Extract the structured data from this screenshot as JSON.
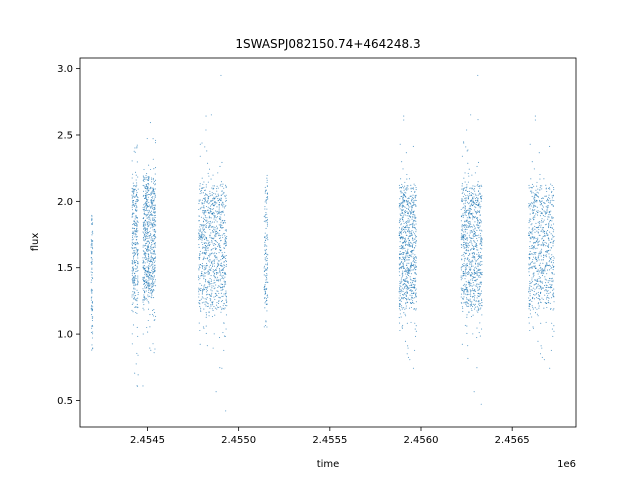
{
  "chart_data": {
    "type": "scatter",
    "title": "1SWASPJ082150.74+464248.3",
    "xlabel": "time",
    "ylabel": "flux",
    "x_offset_label": "1e6",
    "xlim": [
      2454130,
      2456850
    ],
    "ylim": [
      0.3,
      3.08
    ],
    "grid": false,
    "legend": "none",
    "point_color": "#1f77b4",
    "x_ticks": [
      2454500,
      2455000,
      2455500,
      2456000,
      2456500
    ],
    "x_tick_labels": [
      "2.4545",
      "2.4550",
      "2.4555",
      "2.4560",
      "2.4565"
    ],
    "y_ticks": [
      0.5,
      1.0,
      1.5,
      2.0,
      2.5,
      3.0
    ],
    "y_tick_labels": [
      "0.5",
      "1.0",
      "1.5",
      "2.0",
      "2.5",
      "3.0"
    ],
    "observing_segments": [
      {
        "x_start": 2454190,
        "x_end": 2454200,
        "y_center": 1.4,
        "y_min": 0.85,
        "y_max": 1.9,
        "density": 0.1
      },
      {
        "x_start": 2454415,
        "x_end": 2454450,
        "y_center": 1.65,
        "y_min": 0.6,
        "y_max": 2.45,
        "density": 0.35
      },
      {
        "x_start": 2454475,
        "x_end": 2454545,
        "y_center": 1.72,
        "y_min": 0.45,
        "y_max": 2.95,
        "density": 0.75
      },
      {
        "x_start": 2454780,
        "x_end": 2454935,
        "y_center": 1.65,
        "y_min": 0.4,
        "y_max": 2.98,
        "density": 1.0
      },
      {
        "x_start": 2455140,
        "x_end": 2455160,
        "y_center": 1.65,
        "y_min": 1.05,
        "y_max": 2.2,
        "density": 0.15
      },
      {
        "x_start": 2455880,
        "x_end": 2455975,
        "y_center": 1.65,
        "y_min": 0.45,
        "y_max": 3.0,
        "density": 0.85
      },
      {
        "x_start": 2456220,
        "x_end": 2456335,
        "y_center": 1.65,
        "y_min": 0.45,
        "y_max": 2.95,
        "density": 0.9
      },
      {
        "x_start": 2456590,
        "x_end": 2456730,
        "y_center": 1.65,
        "y_min": 0.45,
        "y_max": 2.92,
        "density": 0.8
      }
    ]
  }
}
